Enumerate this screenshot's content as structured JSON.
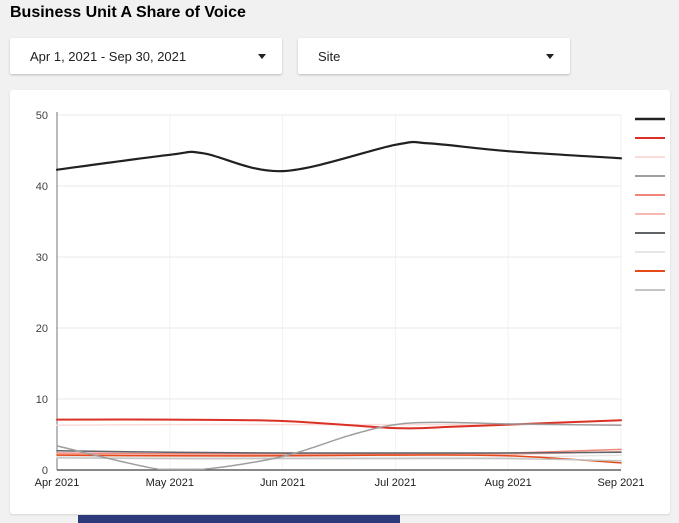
{
  "page": {
    "background": "#f1f1f1",
    "footer_bar_color": "#2c3a7a"
  },
  "header": {
    "title": "Business Unit A Share of Voice"
  },
  "filters": {
    "date_range": {
      "label": "Apr 1, 2021 - Sep 30, 2021"
    },
    "site": {
      "label": "Site"
    }
  },
  "chart_data": {
    "type": "line",
    "title": "Business Unit A Share of Voice",
    "xlabel": "",
    "ylabel": "",
    "x_tick_labels": [
      "Apr 2021",
      "May 2021",
      "Jun 2021",
      "Jul 2021",
      "Aug 2021",
      "Sep 2021"
    ],
    "y_ticks": [
      0,
      10,
      20,
      30,
      40,
      50
    ],
    "ylim": [
      0,
      50
    ],
    "grid": true,
    "legend_position": "right",
    "legend_labels_visible": false,
    "series": [
      {
        "name": "series-1-black",
        "color": "#212121",
        "width": 2.2,
        "x": [
          0,
          1,
          1.3,
          2,
          3,
          3.3,
          4,
          5
        ],
        "values": [
          42.3,
          44.4,
          44.6,
          42.1,
          45.8,
          46.0,
          44.9,
          43.9
        ]
      },
      {
        "name": "series-2-red",
        "color": "#da3025",
        "width": 2,
        "x": [
          0,
          1,
          2,
          3,
          3.5,
          4,
          4.5,
          5
        ],
        "values": [
          7.1,
          7.1,
          6.9,
          5.9,
          6.1,
          6.4,
          6.7,
          7.0
        ]
      },
      {
        "name": "series-3-very-light-pink",
        "color": "#fbdcda",
        "width": 1.5,
        "x": [
          0,
          1,
          2,
          3,
          4,
          5
        ],
        "values": [
          6.3,
          6.4,
          6.4,
          6.4,
          6.4,
          6.4
        ]
      },
      {
        "name": "series-4-gray",
        "color": "#9e9e9e",
        "width": 1.5,
        "x": [
          0,
          0.9,
          1.3,
          2,
          2.6,
          3,
          3.4,
          4,
          4.5,
          5
        ],
        "values": [
          3.4,
          0.1,
          0.1,
          1.9,
          4.9,
          6.4,
          6.7,
          6.5,
          6.4,
          6.3
        ]
      },
      {
        "name": "series-5-light-red",
        "color": "#f08579",
        "width": 1.5,
        "x": [
          0,
          1,
          2,
          3,
          4,
          5
        ],
        "values": [
          2.4,
          2.3,
          2.3,
          2.3,
          2.4,
          2.9
        ]
      },
      {
        "name": "series-6-light-pink",
        "color": "#f6b8b2",
        "width": 1.5,
        "x": [
          0,
          1,
          2,
          3,
          4,
          5
        ],
        "values": [
          2.2,
          2.1,
          2.1,
          2.1,
          2.2,
          2.6
        ]
      },
      {
        "name": "series-7-dark-gray",
        "color": "#5f6368",
        "width": 1.5,
        "x": [
          0,
          1,
          2,
          3,
          4,
          5
        ],
        "values": [
          2.7,
          2.5,
          2.4,
          2.4,
          2.4,
          2.5
        ]
      },
      {
        "name": "series-8-very-light-gray",
        "color": "#e6e6e6",
        "width": 1.5,
        "x": [
          0,
          1,
          2,
          3,
          4,
          5
        ],
        "values": [
          1.9,
          1.8,
          1.8,
          1.8,
          1.8,
          2.1
        ]
      },
      {
        "name": "series-9-orange-red",
        "color": "#e64a19",
        "width": 1.5,
        "x": [
          0,
          1,
          2,
          3,
          4,
          5
        ],
        "values": [
          2.1,
          2.0,
          2.0,
          2.1,
          2.0,
          1.0
        ]
      },
      {
        "name": "series-10-light-gray",
        "color": "#c4c4c4",
        "width": 1.5,
        "x": [
          0,
          1,
          2,
          3,
          4,
          5
        ],
        "values": [
          1.7,
          1.6,
          1.6,
          1.6,
          1.6,
          1.3
        ]
      }
    ]
  }
}
